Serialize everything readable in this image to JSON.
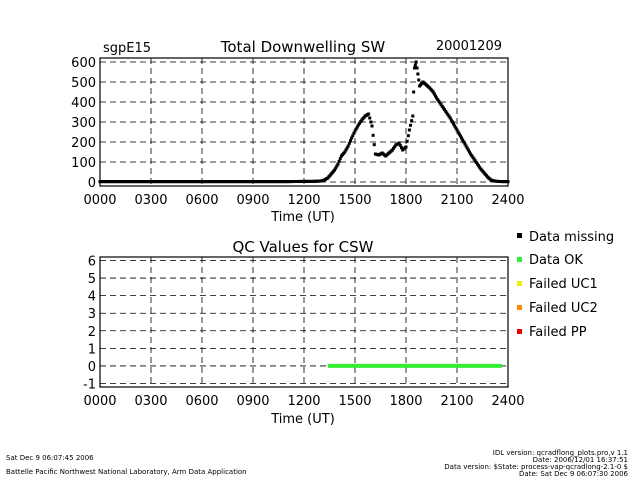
{
  "top_chart": {
    "site": "sgpE15",
    "title": "Total Downwelling SW",
    "date": "20001209",
    "xlabel": "Time (UT)"
  },
  "qc_chart": {
    "title": "QC Values for CSW",
    "xlabel": "Time (UT)"
  },
  "legend": [
    {
      "label": "Data missing",
      "color": "#000000"
    },
    {
      "label": "Data OK",
      "color": "#33ee33"
    },
    {
      "label": "Failed UC1",
      "color": "#eeee00"
    },
    {
      "label": "Failed UC2",
      "color": "#ff8800"
    },
    {
      "label": "Failed PP",
      "color": "#ee0000"
    }
  ],
  "footer": {
    "left_line1": "Sat Dec  9 06:07:45 2006",
    "left_line2": "Battelle Pacific Northwest National Laboratory, Arm Data Application",
    "right_line1": "IDL version: qcradflong_plots.pro,v 1.1",
    "right_line2": "Date: 2006/12/01 16:37:51",
    "right_line3": "Data version: $State: process-vap-qcradlong-2.1-0 $",
    "right_line4": "Date: Sat Dec  9 06:07:30 2006"
  },
  "chart_data": [
    {
      "type": "scatter",
      "title": "Total Downwelling SW",
      "xlabel": "Time (UT)",
      "ylabel": "",
      "xlim": [
        0,
        2400
      ],
      "ylim": [
        -20,
        620
      ],
      "xticks": [
        "0000",
        "0300",
        "0600",
        "0900",
        "1200",
        "1500",
        "1800",
        "2100",
        "2400"
      ],
      "yticks": [
        0,
        100,
        200,
        300,
        400,
        500,
        600
      ],
      "grid": true,
      "series": [
        {
          "color": "#000000",
          "x": [
            0,
            100,
            200,
            300,
            400,
            500,
            600,
            700,
            800,
            900,
            1000,
            1100,
            1200,
            1250,
            1300,
            1320,
            1340,
            1360,
            1380,
            1400,
            1420,
            1440,
            1460,
            1480,
            1500,
            1520,
            1540,
            1560,
            1580,
            1600,
            1620,
            1640,
            1660,
            1680,
            1700,
            1720,
            1740,
            1760,
            1780,
            1800,
            1820,
            1840,
            1850,
            1860,
            1870,
            1880,
            1900,
            1920,
            1940,
            1960,
            1980,
            2000,
            2020,
            2040,
            2060,
            2080,
            2100,
            2120,
            2140,
            2160,
            2180,
            2200,
            2220,
            2240,
            2260,
            2280,
            2300,
            2320,
            2340,
            2360,
            2380,
            2400
          ],
          "y": [
            2,
            2,
            2,
            2,
            2,
            2,
            2,
            2,
            2,
            2,
            2,
            2,
            3,
            3,
            5,
            10,
            20,
            40,
            60,
            90,
            130,
            150,
            180,
            220,
            255,
            285,
            310,
            330,
            340,
            280,
            140,
            135,
            145,
            130,
            145,
            160,
            185,
            195,
            160,
            175,
            260,
            330,
            570,
            600,
            540,
            480,
            500,
            485,
            470,
            450,
            420,
            395,
            370,
            345,
            320,
            290,
            260,
            230,
            200,
            170,
            140,
            115,
            90,
            65,
            45,
            25,
            10,
            5,
            3,
            2,
            2,
            2
          ]
        }
      ]
    },
    {
      "type": "line",
      "title": "QC Values for CSW",
      "xlabel": "Time (UT)",
      "ylabel": "",
      "xlim": [
        0,
        2400
      ],
      "ylim": [
        -1.2,
        6.2
      ],
      "xticks": [
        "0000",
        "0300",
        "0600",
        "0900",
        "1200",
        "1500",
        "1800",
        "2100",
        "2400"
      ],
      "yticks": [
        -1,
        0,
        1,
        2,
        3,
        4,
        5,
        6
      ],
      "grid": true,
      "series": [
        {
          "name": "Data OK",
          "color": "#33ee33",
          "x": [
            1340,
            2365
          ],
          "y": [
            0,
            0
          ]
        }
      ]
    }
  ]
}
